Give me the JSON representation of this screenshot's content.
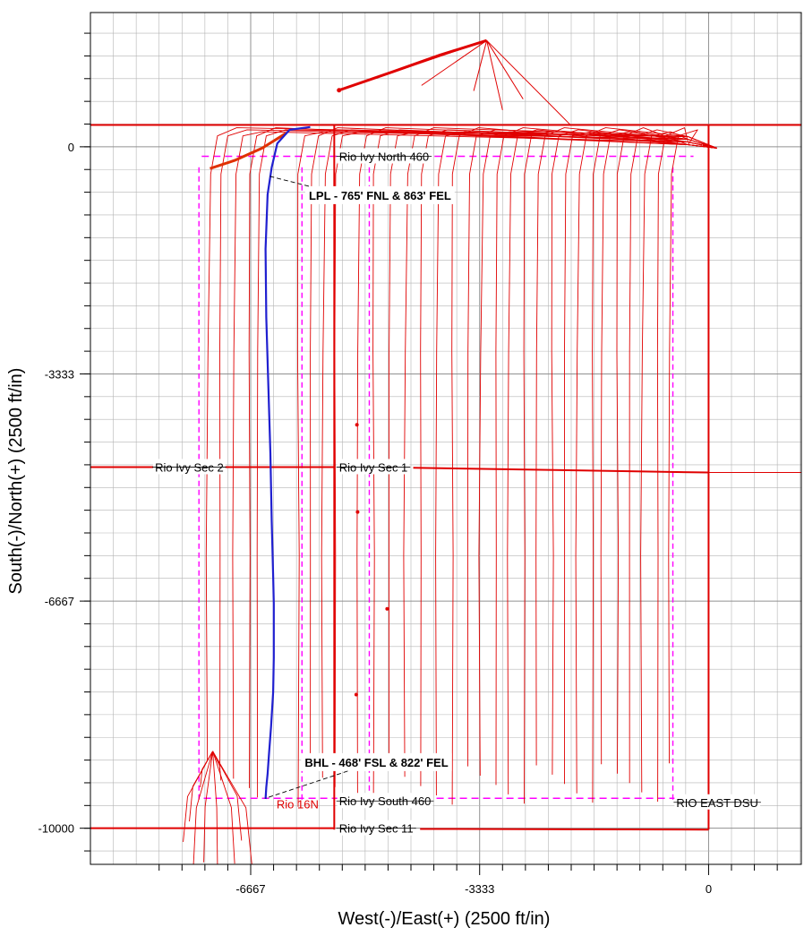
{
  "chart_data": {
    "type": "line",
    "xlabel": "West(-)/East(+) (2500 ft/in)",
    "ylabel": "South(-)/North(+) (2500 ft/in)",
    "xlim": [
      -9000,
      1350
    ],
    "ylim": [
      -10530,
      1970
    ],
    "grid": true,
    "x_ticks": [
      -6667,
      -3333,
      0
    ],
    "y_ticks": [
      0,
      -3333,
      -6667,
      -10000
    ],
    "colors": {
      "grid": "#b4b4b4",
      "offset_wells": "#e00000",
      "plan_well": "#2020d0",
      "lease_lines": "#ff00ff"
    },
    "labels": [
      {
        "text": "Rio Ivy North 460",
        "x": -5380,
        "y": -140
      },
      {
        "text": "Rio Ivy Sec 2",
        "x": -8060,
        "y": -4700
      },
      {
        "text": "Rio Ivy Sec 1",
        "x": -5380,
        "y": -4700
      },
      {
        "text": "Rio Ivy South 460",
        "x": -5380,
        "y": -9600
      },
      {
        "text": "RIO EAST DSU",
        "x": -470,
        "y": -9620
      },
      {
        "text": "Rio Ivy Sec 11",
        "x": -5380,
        "y": -10000
      }
    ],
    "red_labels": [
      {
        "text": "Rio 16N",
        "x": -6290,
        "y": -9640
      }
    ],
    "callouts": [
      {
        "text": "LPL - 765' FNL & 863' FEL",
        "x": -5820,
        "y": -710,
        "to": [
          -6400,
          -430
        ]
      },
      {
        "text": "BHL - 468' FSL & 822' FEL",
        "x": -5880,
        "y": -9030,
        "to": [
          -6450,
          -9560
        ]
      }
    ],
    "series": [
      {
        "name": "Rio 16N",
        "x": [
          -5800,
          -6100,
          -6280,
          -6360,
          -6420,
          -6450,
          -6440,
          -6410,
          -6380,
          -6360,
          -6340,
          -6330,
          -6330,
          -6330,
          -6340,
          -6370,
          -6400,
          -6420,
          -6440,
          -6450
        ],
        "y": [
          290,
          250,
          50,
          -300,
          -700,
          -1500,
          -2500,
          -3500,
          -4500,
          -5500,
          -6300,
          -6700,
          -7000,
          -7500,
          -8000,
          -8500,
          -8900,
          -9200,
          -9400,
          -9570
        ]
      }
    ]
  }
}
